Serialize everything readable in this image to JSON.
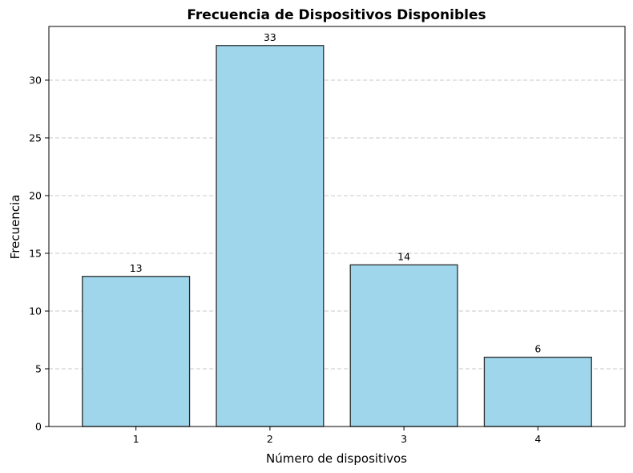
{
  "chart_data": {
    "type": "bar",
    "title": "Frecuencia de Dispositivos Disponibles",
    "xlabel": "Número de dispositivos",
    "ylabel": "Frecuencia",
    "categories": [
      "1",
      "2",
      "3",
      "4"
    ],
    "values": [
      13,
      33,
      14,
      6
    ],
    "data_labels": [
      "13",
      "33",
      "14",
      "6"
    ],
    "yticks": [
      0,
      5,
      10,
      15,
      20,
      25,
      30
    ],
    "ylim": [
      0,
      34.65
    ],
    "grid": "y-dashed",
    "legend": "none",
    "colors": {
      "bar_fill": "#9fd6ec",
      "bar_edge": "#2b2b2b",
      "grid": "#c8c8c8"
    }
  }
}
